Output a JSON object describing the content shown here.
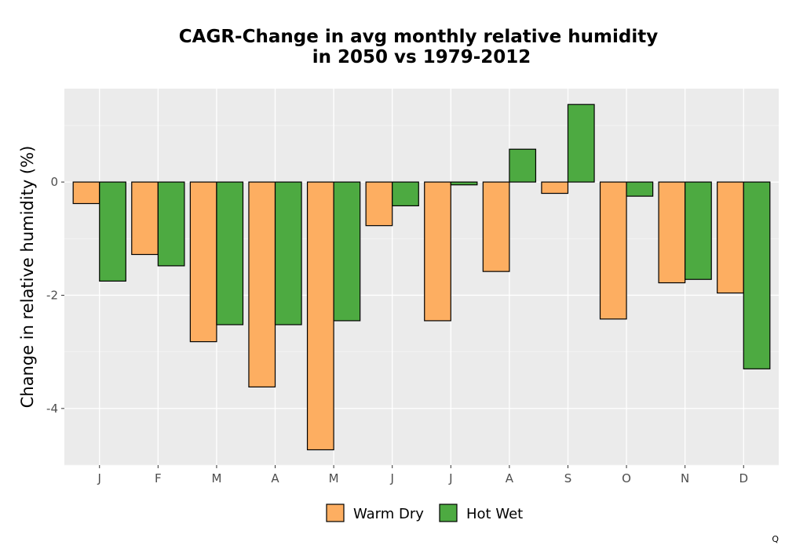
{
  "chart_data": {
    "type": "bar",
    "title_lines": [
      "CAGR-Change in avg monthly relative humidity",
      "in 2050 vs 1979-2012"
    ],
    "xlabel": "",
    "ylabel": "Change in relative humidity (%)",
    "categories": [
      "J",
      "F",
      "M",
      "A",
      "M",
      "J",
      "J",
      "A",
      "S",
      "O",
      "N",
      "D"
    ],
    "series": [
      {
        "name": "Warm Dry",
        "color": "#fdae61",
        "values": [
          -0.38,
          -1.28,
          -2.82,
          -3.62,
          -4.73,
          -0.77,
          -2.45,
          -1.58,
          -0.2,
          -2.42,
          -1.78,
          -1.96
        ]
      },
      {
        "name": "Hot Wet",
        "color": "#4daa41",
        "values": [
          -1.75,
          -1.48,
          -2.52,
          -2.52,
          -2.45,
          -0.42,
          -0.05,
          0.58,
          1.37,
          -0.25,
          -1.72,
          -3.3
        ]
      }
    ],
    "ylim": [
      -5.0,
      1.65
    ],
    "yticks": [
      0,
      -2,
      -4
    ],
    "ytick_labels": [
      "0",
      "-2",
      "-4"
    ],
    "grid": true,
    "legend_position": "bottom"
  },
  "corner_mark": "Q"
}
